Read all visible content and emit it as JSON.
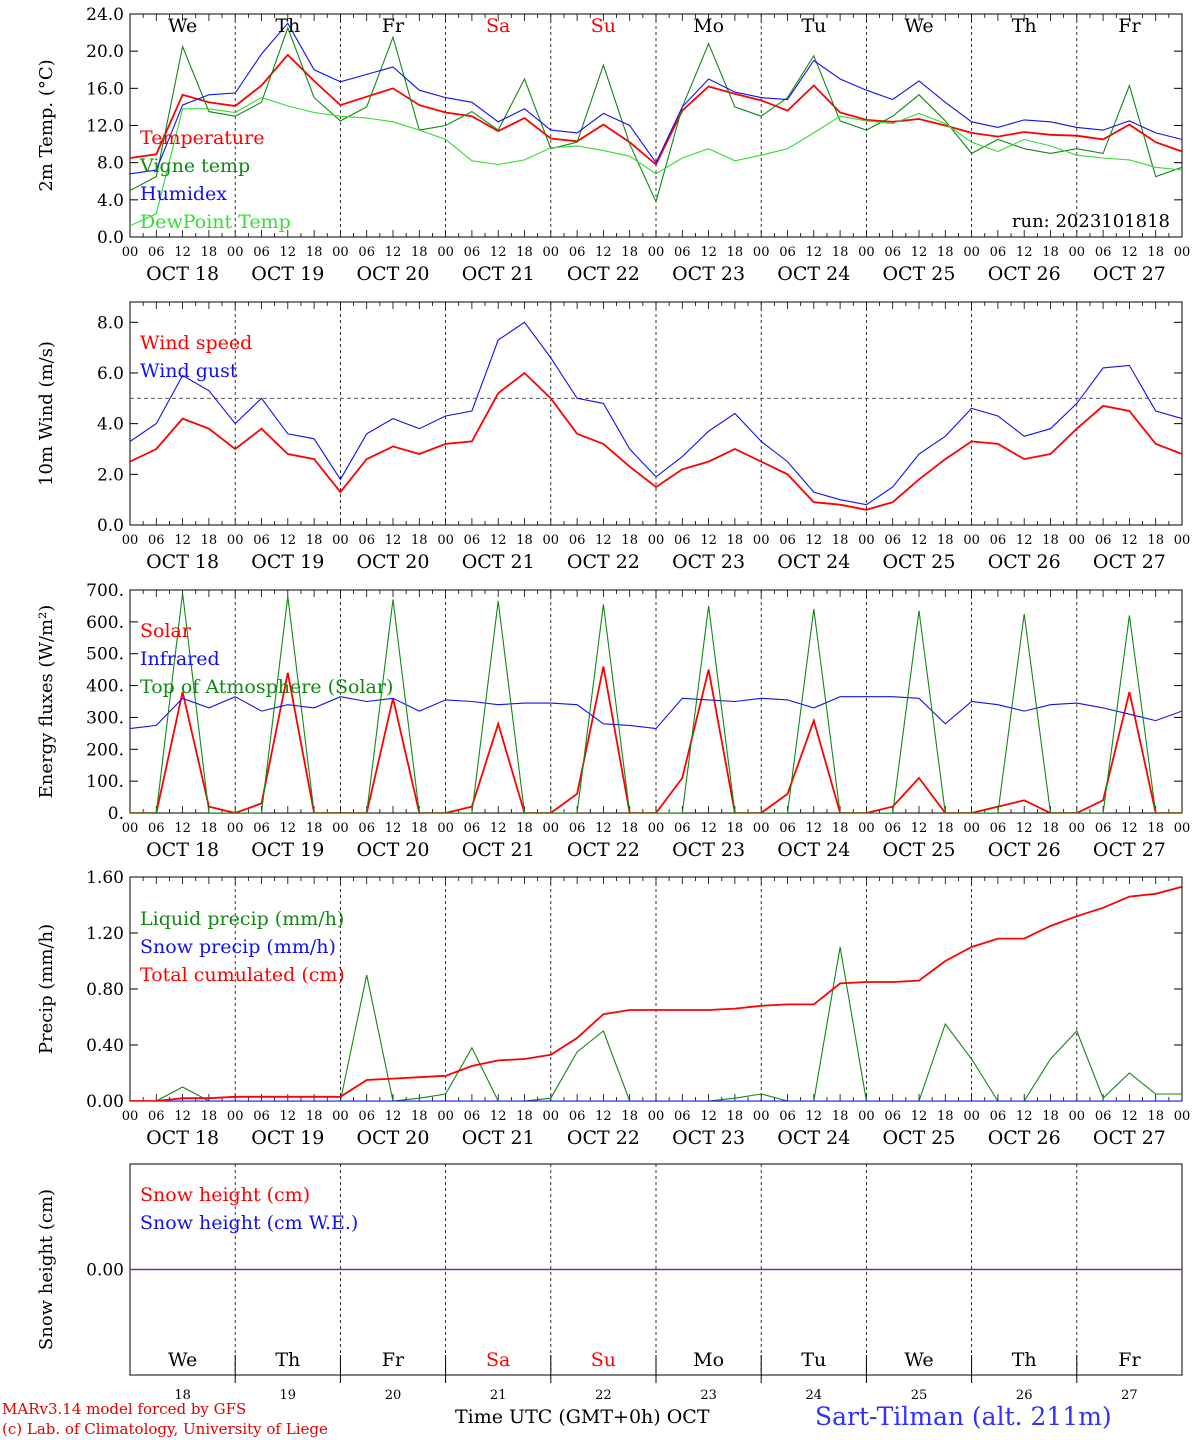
{
  "colors": {
    "red": "#ff0000",
    "dark_green": "#118811",
    "blue": "#1010f0",
    "light_green": "#33dd33",
    "purple": "#7030a0",
    "grid": "#000000"
  },
  "time_axis": {
    "hour_labels": [
      "00",
      "06",
      "12",
      "18"
    ],
    "end_label": "00",
    "dates": [
      "OCT 18",
      "OCT 19",
      "OCT 20",
      "OCT 21",
      "OCT 22",
      "OCT 23",
      "OCT 24",
      "OCT 25",
      "OCT 26",
      "OCT 27"
    ],
    "weekdays": [
      "We",
      "Th",
      "Fr",
      "Sa",
      "Su",
      "Mo",
      "Tu",
      "We",
      "Th",
      "Fr"
    ],
    "weekend_index": [
      3,
      4
    ],
    "day_numbers": [
      "18",
      "19",
      "20",
      "21",
      "22",
      "23",
      "24",
      "25",
      "26",
      "27"
    ]
  },
  "footer": {
    "model": "MARv3.14 model forced by GFS",
    "lab": "(c) Lab. of Climatology, University of Liege",
    "xlabel": "Time UTC (GMT+0h) OCT",
    "station": "Sart-Tilman (alt. 211m)"
  },
  "chart_data": [
    {
      "type": "line",
      "ylabel": "2m Temp. (°C)",
      "ylim": [
        0,
        24
      ],
      "yticks": [
        "0.0",
        "4.0",
        "8.0",
        "12.0",
        "16.0",
        "20.0",
        "24.0"
      ],
      "run": "run: 2023101818",
      "show_weekdays": true,
      "x_hours": [
        0,
        6,
        12,
        18,
        24,
        30,
        36,
        42,
        48,
        54,
        60,
        66,
        72,
        78,
        84,
        90,
        96,
        102,
        108,
        114,
        120,
        126,
        132,
        138,
        144,
        150,
        156,
        162,
        168,
        174,
        180,
        186,
        192,
        198,
        204,
        210,
        216,
        222,
        228,
        234,
        240
      ],
      "series": [
        {
          "name": "Temperature",
          "color": "red",
          "values": [
            8.5,
            8.9,
            15.3,
            14.5,
            14.1,
            16.3,
            19.6,
            16.8,
            14.2,
            15.1,
            16.0,
            14.2,
            13.4,
            13.0,
            11.4,
            12.8,
            10.6,
            10.3,
            12.1,
            10.2,
            7.8,
            13.6,
            16.2,
            15.4,
            14.7,
            13.6,
            16.3,
            13.4,
            12.6,
            12.4,
            12.7,
            12.0,
            11.2,
            10.8,
            11.3,
            11.0,
            10.9,
            10.5,
            12.1,
            10.2,
            9.2
          ]
        },
        {
          "name": "Vigne temp",
          "color": "dark_green",
          "values": [
            5.0,
            6.5,
            20.5,
            13.5,
            13.0,
            14.5,
            22.5,
            15.0,
            12.5,
            14.0,
            21.5,
            11.5,
            12.0,
            13.5,
            11.5,
            17.0,
            9.5,
            10.2,
            18.5,
            10.0,
            3.8,
            14.0,
            20.8,
            14.0,
            13.0,
            15.0,
            19.5,
            12.5,
            11.5,
            13.0,
            15.3,
            12.5,
            9.0,
            10.5,
            9.5,
            9.0,
            9.5,
            9.0,
            16.3,
            6.5,
            7.5
          ]
        },
        {
          "name": "Humidex",
          "color": "blue",
          "values": [
            6.8,
            7.2,
            14.2,
            15.3,
            15.5,
            19.7,
            23.0,
            18.0,
            16.7,
            17.5,
            18.3,
            15.8,
            15.0,
            14.5,
            12.4,
            13.8,
            11.5,
            11.2,
            13.3,
            12.0,
            8.0,
            14.0,
            17.0,
            15.6,
            15.0,
            14.8,
            19.0,
            17.0,
            15.8,
            14.8,
            16.8,
            14.5,
            12.4,
            11.8,
            12.6,
            12.4,
            11.8,
            11.5,
            12.5,
            11.2,
            10.5
          ]
        },
        {
          "name": "DewPoint Temp",
          "color": "light_green",
          "values": [
            1.2,
            2.5,
            13.8,
            13.8,
            13.4,
            15.0,
            14.1,
            13.4,
            13.0,
            12.8,
            12.4,
            11.5,
            10.5,
            8.2,
            7.8,
            8.3,
            9.6,
            9.8,
            9.3,
            8.7,
            6.8,
            8.5,
            9.5,
            8.2,
            8.8,
            9.5,
            11.2,
            13.0,
            12.5,
            12.2,
            13.3,
            12.2,
            10.2,
            9.2,
            10.5,
            9.8,
            8.8,
            8.5,
            8.3,
            7.5,
            7.2
          ]
        }
      ]
    },
    {
      "type": "line",
      "ylabel": "10m Wind (m/s)",
      "ylim": [
        0,
        8.8
      ],
      "yticks": [
        "0.0",
        "2.0",
        "4.0",
        "6.0",
        "8.0"
      ],
      "ref_line": 5.0,
      "x_hours": [
        0,
        6,
        12,
        18,
        24,
        30,
        36,
        42,
        48,
        54,
        60,
        66,
        72,
        78,
        84,
        90,
        96,
        102,
        108,
        114,
        120,
        126,
        132,
        138,
        144,
        150,
        156,
        162,
        168,
        174,
        180,
        186,
        192,
        198,
        204,
        210,
        216,
        222,
        228,
        234,
        240
      ],
      "series": [
        {
          "name": "Wind speed",
          "color": "red",
          "values": [
            2.5,
            3.0,
            4.2,
            3.8,
            3.0,
            3.8,
            2.8,
            2.6,
            1.3,
            2.6,
            3.1,
            2.8,
            3.2,
            3.3,
            5.2,
            6.0,
            5.0,
            3.6,
            3.2,
            2.3,
            1.5,
            2.2,
            2.5,
            3.0,
            2.5,
            2.0,
            0.9,
            0.8,
            0.6,
            0.9,
            1.8,
            2.6,
            3.3,
            3.2,
            2.6,
            2.8,
            3.8,
            4.7,
            4.5,
            3.2,
            2.8
          ]
        },
        {
          "name": "Wind gust",
          "color": "blue",
          "values": [
            3.3,
            4.0,
            5.9,
            5.3,
            4.0,
            5.0,
            3.6,
            3.4,
            1.8,
            3.6,
            4.2,
            3.8,
            4.3,
            4.5,
            7.3,
            8.0,
            6.6,
            5.0,
            4.8,
            3.0,
            1.9,
            2.7,
            3.7,
            4.4,
            3.3,
            2.5,
            1.3,
            1.0,
            0.8,
            1.5,
            2.8,
            3.5,
            4.6,
            4.3,
            3.5,
            3.8,
            4.8,
            6.2,
            6.3,
            4.5,
            4.2
          ]
        }
      ]
    },
    {
      "type": "line",
      "ylabel": "Energy fluxes (W/m²)",
      "ylim": [
        0,
        700
      ],
      "yticks": [
        "0.",
        "100.",
        "200.",
        "300.",
        "400.",
        "500.",
        "600.",
        "700."
      ],
      "x_hours": [
        0,
        6,
        12,
        18,
        24,
        30,
        36,
        42,
        48,
        54,
        60,
        66,
        72,
        78,
        84,
        90,
        96,
        102,
        108,
        114,
        120,
        126,
        132,
        138,
        144,
        150,
        156,
        162,
        168,
        174,
        180,
        186,
        192,
        198,
        204,
        210,
        216,
        222,
        228,
        234,
        240
      ],
      "series": [
        {
          "name": "Solar",
          "color": "red",
          "values": [
            0,
            0,
            380,
            20,
            0,
            30,
            440,
            0,
            0,
            0,
            360,
            0,
            0,
            20,
            280,
            0,
            0,
            60,
            460,
            0,
            0,
            110,
            450,
            0,
            0,
            60,
            290,
            0,
            0,
            20,
            110,
            0,
            0,
            20,
            40,
            0,
            0,
            40,
            380,
            0,
            0
          ]
        },
        {
          "name": "Infrared",
          "color": "blue",
          "values": [
            265,
            275,
            360,
            330,
            365,
            320,
            340,
            330,
            365,
            350,
            360,
            320,
            355,
            350,
            340,
            345,
            345,
            340,
            280,
            275,
            265,
            360,
            355,
            350,
            360,
            355,
            330,
            365,
            365,
            365,
            360,
            280,
            350,
            340,
            320,
            340,
            345,
            330,
            310,
            290,
            320
          ]
        },
        {
          "name": "Top of Atmosphere (Solar)",
          "color": "dark_green",
          "values": [
            0,
            0,
            690,
            0,
            0,
            0,
            680,
            0,
            0,
            0,
            670,
            0,
            0,
            0,
            665,
            0,
            0,
            0,
            655,
            0,
            0,
            0,
            650,
            0,
            0,
            0,
            640,
            0,
            0,
            0,
            635,
            0,
            0,
            0,
            625,
            0,
            0,
            0,
            620,
            0,
            0
          ]
        }
      ]
    },
    {
      "type": "line",
      "ylabel": "Precip (mm/h)",
      "ylim": [
        0,
        1.6
      ],
      "yticks": [
        "0.00",
        "0.40",
        "0.80",
        "1.20",
        "1.60"
      ],
      "x_hours": [
        0,
        6,
        12,
        18,
        24,
        30,
        36,
        42,
        48,
        54,
        60,
        66,
        72,
        78,
        84,
        90,
        96,
        102,
        108,
        114,
        120,
        126,
        132,
        138,
        144,
        150,
        156,
        162,
        168,
        174,
        180,
        186,
        192,
        198,
        204,
        210,
        216,
        222,
        228,
        234,
        240
      ],
      "series": [
        {
          "name": "Liquid precip (mm/h)",
          "color": "dark_green",
          "values": [
            0,
            0,
            0.1,
            0,
            0,
            0,
            0,
            0,
            0,
            0.9,
            0,
            0.02,
            0.05,
            0.38,
            0,
            0,
            0.02,
            0.35,
            0.5,
            0,
            0,
            0,
            0,
            0.02,
            0.05,
            0,
            0,
            1.1,
            0,
            0,
            0,
            0.55,
            0.3,
            0,
            0,
            0.3,
            0.5,
            0.02,
            0.2,
            0.05,
            0.05
          ]
        },
        {
          "name": "Snow precip (mm/h)",
          "color": "blue",
          "values": [
            0,
            0,
            0,
            0,
            0,
            0,
            0,
            0,
            0,
            0,
            0,
            0,
            0,
            0,
            0,
            0,
            0,
            0,
            0,
            0,
            0,
            0,
            0,
            0,
            0,
            0,
            0,
            0,
            0,
            0,
            0,
            0,
            0,
            0,
            0,
            0,
            0,
            0,
            0,
            0,
            0
          ]
        },
        {
          "name": "Total cumulated (cm)",
          "color": "red",
          "values": [
            0,
            0,
            0.02,
            0.02,
            0.03,
            0.03,
            0.03,
            0.03,
            0.03,
            0.15,
            0.16,
            0.17,
            0.18,
            0.25,
            0.29,
            0.3,
            0.33,
            0.45,
            0.62,
            0.65,
            0.65,
            0.65,
            0.65,
            0.66,
            0.68,
            0.69,
            0.69,
            0.84,
            0.85,
            0.85,
            0.86,
            1.0,
            1.1,
            1.16,
            1.16,
            1.25,
            1.32,
            1.38,
            1.46,
            1.48,
            1.53
          ]
        }
      ]
    },
    {
      "type": "line",
      "ylabel": "Snow height (cm)",
      "ylim": [
        -1,
        1
      ],
      "yticks": [
        "0.00"
      ],
      "show_weekdays_bottom": true,
      "x_hours": [
        0,
        240
      ],
      "series": [
        {
          "name": "Snow height (cm)",
          "color": "red",
          "values": [
            0,
            0
          ]
        },
        {
          "name": "Snow height (cm W.E.)",
          "color": "blue",
          "values": [
            0,
            0
          ]
        }
      ]
    }
  ]
}
